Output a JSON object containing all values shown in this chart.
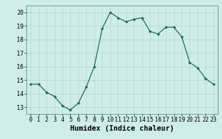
{
  "x": [
    0,
    1,
    2,
    3,
    4,
    5,
    6,
    7,
    8,
    9,
    10,
    11,
    12,
    13,
    14,
    15,
    16,
    17,
    18,
    19,
    20,
    21,
    22,
    23
  ],
  "y": [
    14.7,
    14.7,
    14.1,
    13.8,
    13.1,
    12.8,
    13.3,
    14.5,
    16.0,
    18.8,
    20.0,
    19.6,
    19.3,
    19.5,
    19.6,
    18.6,
    18.4,
    18.9,
    18.9,
    18.2,
    16.3,
    15.9,
    15.1,
    14.7
  ],
  "xlabel": "Humidex (Indice chaleur)",
  "ylabel": "",
  "xlim": [
    -0.5,
    23.5
  ],
  "ylim": [
    12.5,
    20.5
  ],
  "yticks": [
    13,
    14,
    15,
    16,
    17,
    18,
    19,
    20
  ],
  "xticks": [
    0,
    1,
    2,
    3,
    4,
    5,
    6,
    7,
    8,
    9,
    10,
    11,
    12,
    13,
    14,
    15,
    16,
    17,
    18,
    19,
    20,
    21,
    22,
    23
  ],
  "line_color": "#1a6b5a",
  "marker": "D",
  "marker_size": 1.8,
  "bg_color": "#cdecea",
  "grid_color": "#b0d8d4",
  "xlabel_fontsize": 7.5,
  "tick_fontsize": 6.0
}
